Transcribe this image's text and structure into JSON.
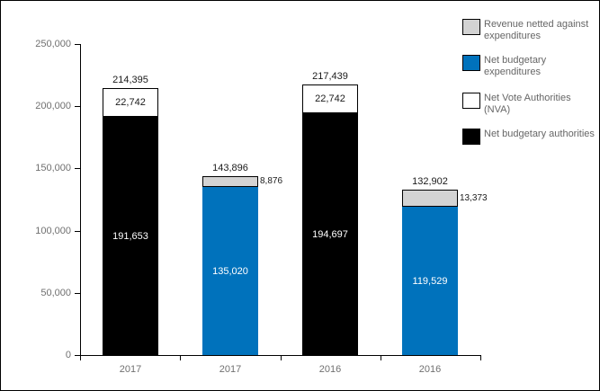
{
  "window": {
    "background": "#ffffff",
    "border_color": "#000000"
  },
  "chart_data": {
    "type": "bar",
    "subtype": "stacked-bar",
    "title": "",
    "xlabel": "",
    "ylabel": "",
    "ylim": [
      0,
      250000
    ],
    "yticks": [
      0,
      50000,
      100000,
      150000,
      200000,
      250000
    ],
    "ytick_labels": [
      "0",
      "50,000",
      "100,000",
      "150,000",
      "200,000",
      "250,000"
    ],
    "grid": "off",
    "categories": [
      "2017",
      "2017",
      "2016",
      "2016"
    ],
    "bars": [
      {
        "category": "2017",
        "total": 214395,
        "total_label": "214,395",
        "segments": [
          {
            "series": "Net budgetary authorities",
            "value": 191653,
            "label": "191,653",
            "color": "#000000",
            "label_color": "#ffffff",
            "bordered": false,
            "label_position": "inside"
          },
          {
            "series": "Net Vote Authorities (NVA)",
            "value": 22742,
            "label": "22,742",
            "color": "#ffffff",
            "label_color": "#1a1a1a",
            "bordered": true,
            "label_position": "inside"
          }
        ]
      },
      {
        "category": "2017",
        "total": 143896,
        "total_label": "143,896",
        "segments": [
          {
            "series": "Net budgetary expenditures",
            "value": 135020,
            "label": "135,020",
            "color": "#0072bc",
            "label_color": "#ffffff",
            "bordered": false,
            "label_position": "inside"
          },
          {
            "series": "Revenue netted against expenditures",
            "value": 8876,
            "label": "8,876",
            "color": "#d3d3d3",
            "label_color": "#1a1a1a",
            "bordered": true,
            "label_position": "outside-right"
          }
        ]
      },
      {
        "category": "2016",
        "total": 217439,
        "total_label": "217,439",
        "segments": [
          {
            "series": "Net budgetary authorities",
            "value": 194697,
            "label": "194,697",
            "color": "#000000",
            "label_color": "#ffffff",
            "bordered": false,
            "label_position": "inside"
          },
          {
            "series": "Net Vote Authorities (NVA)",
            "value": 22742,
            "label": "22,742",
            "color": "#ffffff",
            "label_color": "#1a1a1a",
            "bordered": true,
            "label_position": "inside"
          }
        ]
      },
      {
        "category": "2016",
        "total": 132902,
        "total_label": "132,902",
        "segments": [
          {
            "series": "Net budgetary expenditures",
            "value": 119529,
            "label": "119,529",
            "color": "#0072bc",
            "label_color": "#ffffff",
            "bordered": false,
            "label_position": "inside"
          },
          {
            "series": "Revenue netted against expenditures",
            "value": 13373,
            "label": "13,373",
            "color": "#d3d3d3",
            "label_color": "#1a1a1a",
            "bordered": true,
            "label_position": "outside-right"
          }
        ]
      }
    ],
    "legend": {
      "position": "top-right",
      "items": [
        {
          "label": "Revenue netted against expenditures",
          "color": "#d3d3d3",
          "border": "#000000"
        },
        {
          "label": "Net budgetary expenditures",
          "color": "#0072bc",
          "border": "#000000"
        },
        {
          "label": "Net Vote Authorities (NVA)",
          "color": "#ffffff",
          "border": "#000000"
        },
        {
          "label": "Net budgetary authorities",
          "color": "#000000",
          "border": "#000000"
        }
      ]
    },
    "colors": {
      "axis_line": "#000000",
      "tick_label": "#707070",
      "bar_value_label": "#1a1a1a",
      "legend_text": "#666666"
    }
  }
}
